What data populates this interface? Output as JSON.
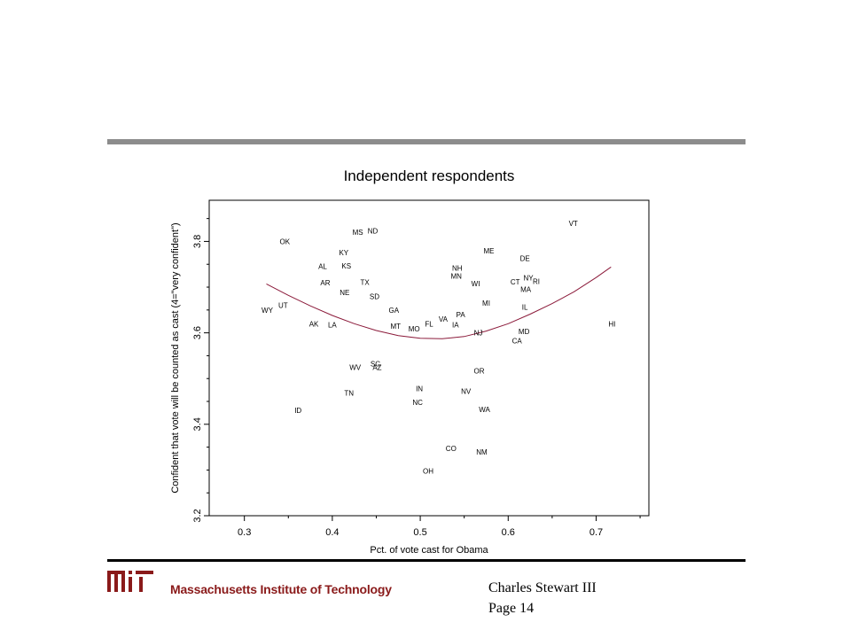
{
  "footer": {
    "institution": "Massachusetts Institute of Technology",
    "author": "Charles Stewart III",
    "page": "Page 14"
  },
  "colors": {
    "fit_curve": "#8b1a3a",
    "rule": "#8c8c8c",
    "institute_text": "#8a1a1a"
  },
  "chart_data": {
    "type": "scatter",
    "title": "Independent respondents",
    "xlabel": "Pct. of vote cast for Obama",
    "ylabel": "Confident that vote will be counted as cast (4=\"very confident\")",
    "xlim": [
      0.26,
      0.76
    ],
    "ylim": [
      3.2,
      3.89
    ],
    "xticks": [
      0.3,
      0.4,
      0.5,
      0.6,
      0.7
    ],
    "xtick_labels": [
      "0.3",
      "0.4",
      "0.5",
      "0.6",
      "0.7"
    ],
    "yticks": [
      3.2,
      3.4,
      3.6,
      3.8
    ],
    "ytick_labels": [
      "3.2",
      "3.4",
      "3.6",
      "3.8"
    ],
    "grid": false,
    "points": [
      {
        "label": "VT",
        "x": 0.674,
        "y": 3.84
      },
      {
        "label": "MS",
        "x": 0.429,
        "y": 3.82
      },
      {
        "label": "ND",
        "x": 0.446,
        "y": 3.823
      },
      {
        "label": "OK",
        "x": 0.346,
        "y": 3.8
      },
      {
        "label": "ME",
        "x": 0.578,
        "y": 3.78
      },
      {
        "label": "KY",
        "x": 0.413,
        "y": 3.776
      },
      {
        "label": "DE",
        "x": 0.619,
        "y": 3.763
      },
      {
        "label": "AL",
        "x": 0.389,
        "y": 3.746
      },
      {
        "label": "KS",
        "x": 0.416,
        "y": 3.747
      },
      {
        "label": "NH",
        "x": 0.542,
        "y": 3.742
      },
      {
        "label": "MN",
        "x": 0.541,
        "y": 3.724
      },
      {
        "label": "NY",
        "x": 0.623,
        "y": 3.72
      },
      {
        "label": "RI",
        "x": 0.632,
        "y": 3.713
      },
      {
        "label": "CT",
        "x": 0.608,
        "y": 3.712
      },
      {
        "label": "AR",
        "x": 0.392,
        "y": 3.71
      },
      {
        "label": "TX",
        "x": 0.437,
        "y": 3.711
      },
      {
        "label": "WI",
        "x": 0.563,
        "y": 3.708
      },
      {
        "label": "MA",
        "x": 0.62,
        "y": 3.695
      },
      {
        "label": "NE",
        "x": 0.414,
        "y": 3.688
      },
      {
        "label": "SD",
        "x": 0.448,
        "y": 3.68
      },
      {
        "label": "MI",
        "x": 0.575,
        "y": 3.665
      },
      {
        "label": "UT",
        "x": 0.344,
        "y": 3.66
      },
      {
        "label": "IL",
        "x": 0.619,
        "y": 3.656
      },
      {
        "label": "WY",
        "x": 0.326,
        "y": 3.65
      },
      {
        "label": "GA",
        "x": 0.47,
        "y": 3.65
      },
      {
        "label": "PA",
        "x": 0.546,
        "y": 3.64
      },
      {
        "label": "VA",
        "x": 0.526,
        "y": 3.63
      },
      {
        "label": "AK",
        "x": 0.379,
        "y": 3.62
      },
      {
        "label": "LA",
        "x": 0.4,
        "y": 3.618
      },
      {
        "label": "FL",
        "x": 0.51,
        "y": 3.62
      },
      {
        "label": "IA",
        "x": 0.54,
        "y": 3.618
      },
      {
        "label": "HI",
        "x": 0.718,
        "y": 3.62
      },
      {
        "label": "MT",
        "x": 0.472,
        "y": 3.615
      },
      {
        "label": "MO",
        "x": 0.493,
        "y": 3.609
      },
      {
        "label": "NJ",
        "x": 0.566,
        "y": 3.6
      },
      {
        "label": "MD",
        "x": 0.618,
        "y": 3.603
      },
      {
        "label": "CA",
        "x": 0.61,
        "y": 3.583
      },
      {
        "label": "SC",
        "x": 0.449,
        "y": 3.532
      },
      {
        "label": "WV",
        "x": 0.426,
        "y": 3.525
      },
      {
        "label": "AZ",
        "x": 0.451,
        "y": 3.525
      },
      {
        "label": "OR",
        "x": 0.567,
        "y": 3.517
      },
      {
        "label": "IN",
        "x": 0.499,
        "y": 3.478
      },
      {
        "label": "TN",
        "x": 0.419,
        "y": 3.468
      },
      {
        "label": "NV",
        "x": 0.552,
        "y": 3.472
      },
      {
        "label": "NC",
        "x": 0.497,
        "y": 3.448
      },
      {
        "label": "WA",
        "x": 0.573,
        "y": 3.433
      },
      {
        "label": "ID",
        "x": 0.361,
        "y": 3.431
      },
      {
        "label": "CO",
        "x": 0.535,
        "y": 3.347
      },
      {
        "label": "NM",
        "x": 0.57,
        "y": 3.34
      },
      {
        "label": "OH",
        "x": 0.509,
        "y": 3.298
      }
    ],
    "fit_curve": {
      "type": "quadratic",
      "x": [
        0.325,
        0.35,
        0.375,
        0.4,
        0.425,
        0.45,
        0.475,
        0.5,
        0.525,
        0.55,
        0.575,
        0.6,
        0.625,
        0.65,
        0.675,
        0.7,
        0.717
      ],
      "y": [
        3.707,
        3.682,
        3.659,
        3.638,
        3.62,
        3.605,
        3.594,
        3.588,
        3.587,
        3.592,
        3.604,
        3.62,
        3.641,
        3.664,
        3.69,
        3.721,
        3.744
      ]
    }
  }
}
